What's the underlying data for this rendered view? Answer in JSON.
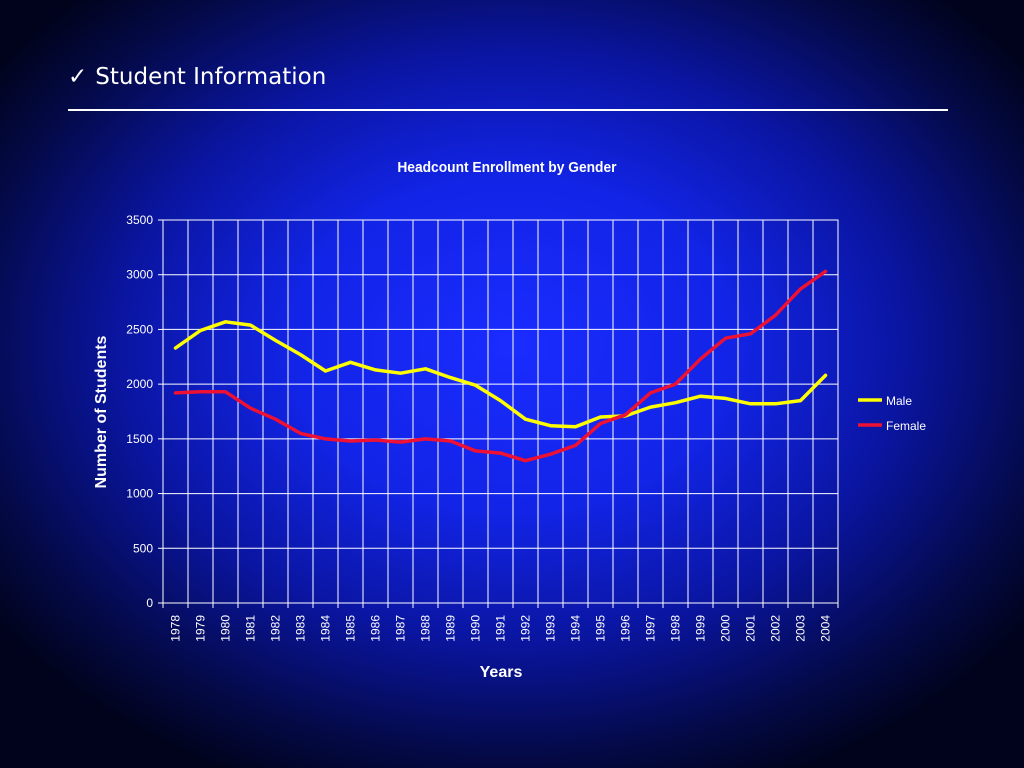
{
  "slide": {
    "check_symbol": "✓",
    "title": "Student Information"
  },
  "colors": {
    "male": "#ffff00",
    "female": "#ee1133",
    "grid": "#ffffff",
    "text": "#ffffff"
  },
  "chart_data": {
    "type": "line",
    "title": "Headcount Enrollment by Gender",
    "xlabel": "Years",
    "ylabel": "Number of Students",
    "ylim": [
      0,
      3500
    ],
    "yticks": [
      "0",
      "500",
      "1000",
      "1500",
      "2000",
      "2500",
      "3000",
      "3500"
    ],
    "grid": true,
    "legend_position": "right",
    "categories": [
      "1978",
      "1979",
      "1980",
      "1981",
      "1982",
      "1983",
      "1984",
      "1985",
      "1986",
      "1987",
      "1988",
      "1989",
      "1990",
      "1991",
      "1992",
      "1993",
      "1994",
      "1995",
      "1996",
      "1997",
      "1998",
      "1999",
      "2000",
      "2001",
      "2002",
      "2003",
      "2004"
    ],
    "series": [
      {
        "name": "Male",
        "color": "#ffff00",
        "values": [
          2330,
          2490,
          2570,
          2540,
          2400,
          2270,
          2120,
          2200,
          2130,
          2100,
          2140,
          2060,
          1990,
          1850,
          1680,
          1620,
          1610,
          1700,
          1710,
          1790,
          1830,
          1890,
          1870,
          1820,
          1820,
          1850,
          2080
        ]
      },
      {
        "name": "Female",
        "color": "#ee1133",
        "values": [
          1920,
          1930,
          1930,
          1780,
          1680,
          1550,
          1500,
          1480,
          1490,
          1470,
          1500,
          1480,
          1390,
          1370,
          1300,
          1360,
          1440,
          1640,
          1720,
          1920,
          2000,
          2230,
          2420,
          2460,
          2630,
          2870,
          3030
        ]
      }
    ]
  }
}
